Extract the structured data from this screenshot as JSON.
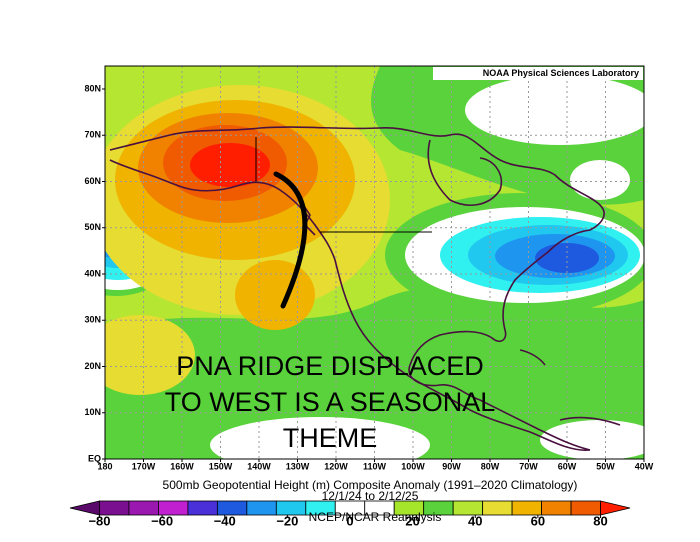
{
  "header": {
    "credit": "NOAA Physical Sciences Laboratory"
  },
  "map": {
    "lat_labels": [
      "80N",
      "70N",
      "60N",
      "50N",
      "40N",
      "30N",
      "20N",
      "10N",
      "EQ"
    ],
    "lon_labels": [
      "180",
      "170W",
      "160W",
      "150W",
      "140W",
      "130W",
      "120W",
      "110W",
      "100W",
      "90W",
      "80W",
      "70W",
      "60W",
      "50W",
      "40W"
    ],
    "annotation": [
      "PNA RIDGE DISPLACED",
      "TO WEST IS A SEASONAL",
      "THEME"
    ]
  },
  "caption": {
    "title": "500mb Geopotential Height (m) Composite Anomaly (1991–2020 Climatology)",
    "dates": "12/1/24  to 2/12/25",
    "source": "NCEP/NCAR Reanalysis"
  },
  "colorbar": {
    "ticks": [
      {
        "value": -80,
        "label": "−80"
      },
      {
        "value": -60,
        "label": "−60"
      },
      {
        "value": -40,
        "label": "−40"
      },
      {
        "value": -20,
        "label": "−20"
      },
      0,
      20,
      40,
      60,
      80
    ],
    "range": [
      -90,
      90
    ],
    "colors": [
      "#5a0a6a",
      "#7a1090",
      "#9a18b0",
      "#c020d0",
      "#4a30d8",
      "#1e5ae0",
      "#1e96f0",
      "#20c8f0",
      "#30f0f0",
      "#ffffff",
      "#ffffff",
      "#a6e62a",
      "#5ad23c",
      "#b4e632",
      "#e6dc32",
      "#f0b400",
      "#f08200",
      "#f05a00",
      "#ff1e00"
    ]
  }
}
